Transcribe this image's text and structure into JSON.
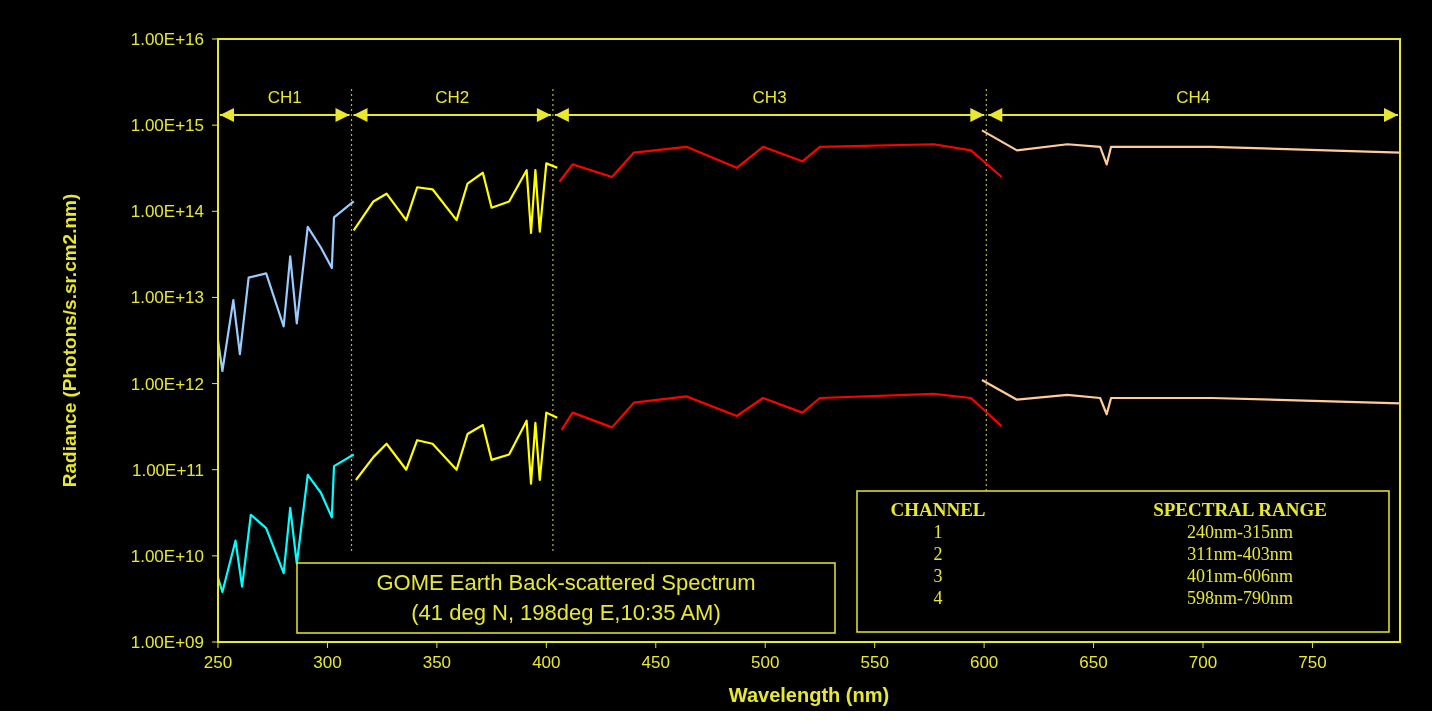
{
  "chart_data": {
    "type": "line",
    "xlabel": "Wavelength (nm)",
    "ylabel": "Radiance (Photons/s.sr.cm2.nm)",
    "log": "y",
    "xlim": [
      250,
      790
    ],
    "ylim": [
      1000000000.0,
      1e+16
    ],
    "xticks": [
      250,
      300,
      350,
      400,
      450,
      500,
      550,
      600,
      650,
      700,
      750
    ],
    "yticks": [
      {
        "value": 1000000000.0,
        "label": "1.00E+09"
      },
      {
        "value": 10000000000.0,
        "label": "1.00E+10"
      },
      {
        "value": 100000000000.0,
        "label": "1.00E+11"
      },
      {
        "value": 1000000000000.0,
        "label": "1.00E+12"
      },
      {
        "value": 10000000000000.0,
        "label": "1.00E+13"
      },
      {
        "value": 100000000000000.0,
        "label": "1.00E+14"
      },
      {
        "value": 1000000000000000.0,
        "label": "1.00E+15"
      },
      {
        "value": 1e+16,
        "label": "1.00E+16"
      }
    ],
    "line_style": "solid",
    "marker": "none",
    "series": [
      {
        "color": "#99ccff",
        "x": [
          250,
          252,
          257,
          260,
          264,
          272,
          280,
          283,
          286,
          291,
          297,
          302,
          303,
          312
        ],
        "values": [
          3200000000000.0,
          1400000000000.0,
          9300000000000.0,
          2200000000000.0,
          17000000000000.0,
          19000000000000.0,
          4600000000000.0,
          30000000000000.0,
          5000000000000.0,
          66000000000000.0,
          38000000000000.0,
          22000000000000.0,
          85000000000000.0,
          130000000000000.0
        ]
      },
      {
        "color": "#ffff00",
        "x": [
          312,
          321,
          327,
          336,
          341,
          348,
          359,
          364,
          371,
          375,
          383,
          391,
          393,
          395,
          397,
          400,
          405
        ],
        "values": [
          60000000000000.0,
          130000000000000.0,
          160000000000000.0,
          79000000000000.0,
          190000000000000.0,
          180000000000000.0,
          79000000000000.0,
          210000000000000.0,
          280000000000000.0,
          110000000000000.0,
          130000000000000.0,
          300000000000000.0,
          56000000000000.0,
          300000000000000.0,
          58000000000000.0,
          360000000000000.0,
          320000000000000.0
        ]
      },
      {
        "color": "#ff0000",
        "x": [
          406,
          412,
          430,
          440,
          464,
          487,
          499,
          517,
          525,
          577,
          594,
          608
        ],
        "values": [
          220000000000000.0,
          350000000000000.0,
          250000000000000.0,
          480000000000000.0,
          560000000000000.0,
          320000000000000.0,
          560000000000000.0,
          380000000000000.0,
          560000000000000.0,
          600000000000000.0,
          510000000000000.0,
          250000000000000.0
        ]
      },
      {
        "color": "#ffcc99",
        "x": [
          599,
          615,
          638,
          653,
          656,
          658,
          704,
          790
        ],
        "values": [
          870000000000000.0,
          510000000000000.0,
          600000000000000.0,
          560000000000000.0,
          350000000000000.0,
          560000000000000.0,
          560000000000000.0,
          480000000000000.0
        ]
      },
      {
        "color": "#00ffff",
        "x": [
          250,
          252,
          258,
          261,
          265,
          272,
          280,
          283,
          286,
          291,
          297,
          302,
          303,
          312
        ],
        "values": [
          5600000000.0,
          3800000000.0,
          15000000000.0,
          4400000000.0,
          30000000000.0,
          21000000000.0,
          6300000000.0,
          36000000000.0,
          8100000000.0,
          87000000000.0,
          54000000000.0,
          28000000000.0,
          110000000000.0,
          150000000000.0
        ]
      },
      {
        "color": "#ffff00",
        "x": [
          313,
          321,
          327,
          336,
          341,
          348,
          359,
          364,
          371,
          375,
          383,
          391,
          393,
          395,
          397,
          400,
          405
        ],
        "values": [
          76000000000.0,
          140000000000.0,
          200000000000.0,
          100000000000.0,
          220000000000.0,
          200000000000.0,
          100000000000.0,
          260000000000.0,
          330000000000.0,
          130000000000.0,
          150000000000.0,
          370000000000.0,
          69000000000.0,
          350000000000.0,
          76000000000.0,
          460000000000.0,
          400000000000.0
        ]
      },
      {
        "color": "#ff0000",
        "x": [
          407,
          412,
          430,
          440,
          464,
          487,
          499,
          517,
          525,
          577,
          594,
          608
        ],
        "values": [
          290000000000.0,
          460000000000.0,
          310000000000.0,
          600000000000.0,
          710000000000.0,
          420000000000.0,
          680000000000.0,
          460000000000.0,
          680000000000.0,
          760000000000.0,
          680000000000.0,
          320000000000.0
        ]
      },
      {
        "color": "#ffcc99",
        "x": [
          599,
          615,
          638,
          653,
          656,
          658,
          704,
          790
        ],
        "values": [
          1100000000000.0,
          650000000000.0,
          740000000000.0,
          680000000000.0,
          440000000000.0,
          680000000000.0,
          680000000000.0,
          590000000000.0
        ]
      }
    ],
    "ref_lines": [
      {
        "axis": "x",
        "value": 311,
        "color": "#b3b34d",
        "line_style": "dotted"
      },
      {
        "axis": "x",
        "value": 403,
        "color": "#b3b34d",
        "line_style": "dotted"
      },
      {
        "axis": "x",
        "value": 601,
        "color": "#b3b34d",
        "line_style": "dotted"
      }
    ],
    "annotations": [
      "CH1",
      "CH2",
      "CH3",
      "CH4",
      "GOME Earth Back-scattered Spectrum",
      "(41 deg N, 198deg E,10:35 AM)",
      "CHANNEL",
      "SPECTRAL RANGE",
      "1",
      "240nm-315nm",
      "2",
      "311nm-403nm",
      "3",
      "401nm-606nm",
      "4",
      "598nm-790nm"
    ]
  }
}
